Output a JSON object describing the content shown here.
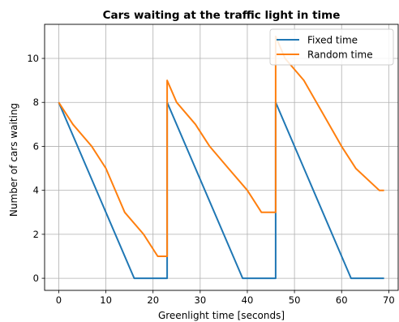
{
  "chart_data": {
    "type": "line",
    "title": "Cars waiting at the traffic light in time",
    "xlabel": "Greenlight time [seconds]",
    "ylabel": "Number of cars waiting",
    "xlim": [
      -3,
      72
    ],
    "ylim": [
      -0.55,
      11.55
    ],
    "xticks": [
      0,
      10,
      20,
      30,
      40,
      50,
      60,
      70
    ],
    "yticks": [
      0,
      2,
      4,
      6,
      8,
      10
    ],
    "grid": true,
    "legend_position": "top-right",
    "series": [
      {
        "name": "Fixed time",
        "color": "#1f77b4",
        "x": [
          0,
          16,
          23,
          23,
          39,
          46,
          46,
          62,
          69
        ],
        "y": [
          8,
          0,
          0,
          8,
          0,
          0,
          8,
          0,
          0
        ]
      },
      {
        "name": "Random time",
        "color": "#ff7f0e",
        "x": [
          0,
          3,
          7,
          10,
          14,
          18,
          21,
          23,
          23,
          25,
          29,
          32,
          36,
          40,
          43,
          46,
          46,
          48,
          52,
          56,
          60,
          63,
          68,
          69
        ],
        "y": [
          8,
          7,
          6,
          5,
          3,
          2,
          1,
          1,
          9,
          8,
          7,
          6,
          5,
          4,
          3,
          3,
          11,
          10,
          9,
          7.5,
          6,
          5,
          4,
          4
        ]
      }
    ]
  }
}
